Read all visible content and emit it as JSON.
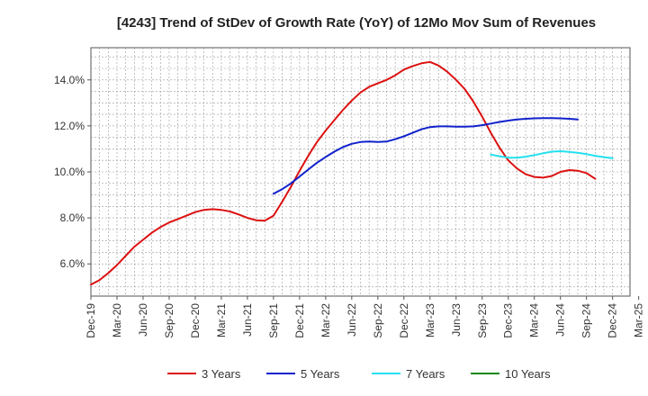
{
  "chart_data": {
    "type": "line",
    "title": "[4243]  Trend of StDev of Growth Rate (YoY) of 12Mo Mov Sum of Revenues",
    "xlabel": "",
    "ylabel": "",
    "ylim": [
      4.6,
      15.4
    ],
    "y_ticks": [
      6,
      8,
      10,
      12,
      14
    ],
    "y_tick_labels": [
      "6.0%",
      "8.0%",
      "10.0%",
      "12.0%",
      "14.0%"
    ],
    "grid": true,
    "x_tick_labels": [
      "Dec-19",
      "Mar-20",
      "Jun-20",
      "Sep-20",
      "Dec-20",
      "Mar-21",
      "Jun-21",
      "Sep-21",
      "Dec-21",
      "Mar-22",
      "Jun-22",
      "Sep-22",
      "Dec-22",
      "Mar-23",
      "Jun-23",
      "Sep-23",
      "Dec-23",
      "Mar-24",
      "Jun-24",
      "Sep-24",
      "Dec-24",
      "Mar-25"
    ],
    "x_count_months": 63,
    "series": [
      {
        "name": "3 Years",
        "color": "#dd1111",
        "start_index": 0,
        "values": [
          5.1,
          5.3,
          5.6,
          5.95,
          6.35,
          6.75,
          7.05,
          7.35,
          7.6,
          7.8,
          7.95,
          8.1,
          8.25,
          8.35,
          8.38,
          8.35,
          8.28,
          8.15,
          8.0,
          7.9,
          7.88,
          8.1,
          8.7,
          9.35,
          10.05,
          10.7,
          11.3,
          11.8,
          12.25,
          12.7,
          13.1,
          13.45,
          13.7,
          13.85,
          14.0,
          14.2,
          14.45,
          14.6,
          14.72,
          14.78,
          14.62,
          14.35,
          14.0,
          13.6,
          13.05,
          12.4,
          11.7,
          11.05,
          10.5,
          10.15,
          9.9,
          9.78,
          9.75,
          9.82,
          10.0,
          10.08,
          10.05,
          9.95,
          9.7
        ]
      },
      {
        "name": "5 Years",
        "color": "#1122cc",
        "start_index": 21,
        "values": [
          9.05,
          9.25,
          9.5,
          9.8,
          10.1,
          10.4,
          10.65,
          10.88,
          11.08,
          11.22,
          11.3,
          11.32,
          11.3,
          11.32,
          11.42,
          11.55,
          11.7,
          11.85,
          11.95,
          11.98,
          11.98,
          11.97,
          11.97,
          11.98,
          12.03,
          12.1,
          12.17,
          12.23,
          12.28,
          12.31,
          12.33,
          12.34,
          12.34,
          12.33,
          12.31,
          12.28
        ]
      },
      {
        "name": "7 Years",
        "color": "#22e0ee",
        "start_index": 46,
        "values": [
          10.75,
          10.68,
          10.62,
          10.62,
          10.66,
          10.73,
          10.81,
          10.88,
          10.9,
          10.87,
          10.83,
          10.77,
          10.7,
          10.64,
          10.6
        ]
      },
      {
        "name": "10 Years",
        "color": "#118811",
        "start_index": 0,
        "values": []
      }
    ]
  }
}
